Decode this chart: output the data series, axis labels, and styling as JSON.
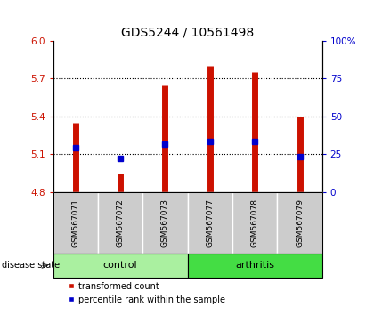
{
  "title": "GDS5244 / 10561498",
  "samples": [
    "GSM567071",
    "GSM567072",
    "GSM567073",
    "GSM567077",
    "GSM567078",
    "GSM567079"
  ],
  "bar_bottom": 4.8,
  "bar_tops": [
    5.35,
    4.95,
    5.65,
    5.8,
    5.75,
    5.4
  ],
  "percentile_values": [
    5.15,
    5.07,
    5.18,
    5.2,
    5.2,
    5.08
  ],
  "ylim_left": [
    4.8,
    6.0
  ],
  "ylim_right": [
    0,
    100
  ],
  "yticks_left": [
    4.8,
    5.1,
    5.4,
    5.7,
    6.0
  ],
  "yticks_right": [
    0,
    25,
    50,
    75,
    100
  ],
  "grid_yticks": [
    5.1,
    5.4,
    5.7
  ],
  "groups": [
    {
      "label": "control",
      "indices": [
        0,
        1,
        2
      ],
      "color": "#aaf0a0"
    },
    {
      "label": "arthritis",
      "indices": [
        3,
        4,
        5
      ],
      "color": "#44dd44"
    }
  ],
  "bar_color": "#cc1100",
  "blue_marker_color": "#0000cc",
  "sample_box_color": "#cccccc",
  "title_fontsize": 10,
  "tick_fontsize": 7.5,
  "legend_fontsize": 7,
  "group_fontsize": 8,
  "sample_fontsize": 6.5
}
